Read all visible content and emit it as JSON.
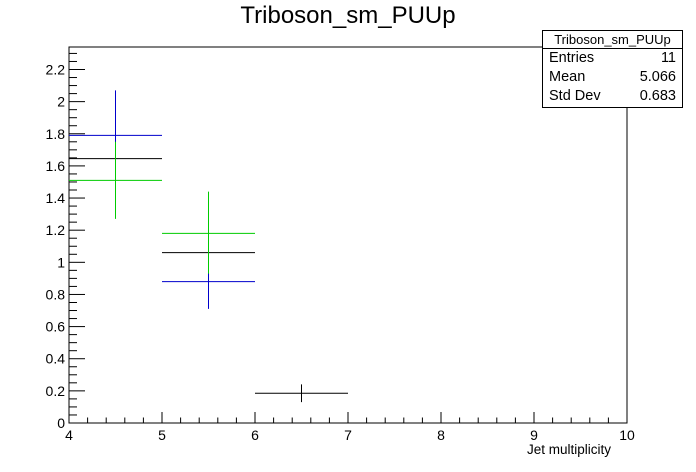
{
  "chart_data": {
    "type": "scatter",
    "title": "Triboson_sm_PUUp",
    "xlabel": "Jet multiplicity",
    "ylabel": "",
    "xlim": [
      4,
      10
    ],
    "ylim": [
      0,
      2.34
    ],
    "x_ticks": [
      "4",
      "5",
      "6",
      "7",
      "8",
      "9",
      "10"
    ],
    "y_ticks": [
      "0",
      "0.2",
      "0.4",
      "0.6",
      "0.8",
      "1",
      "1.2",
      "1.4",
      "1.6",
      "1.8",
      "2",
      "2.2"
    ],
    "grid": false,
    "series": [
      {
        "color": "#000000",
        "points": [
          {
            "x": 4.5,
            "y": 1.645,
            "xerr": 0.5,
            "ylo": 1.4,
            "yhi": 1.9
          },
          {
            "x": 5.5,
            "y": 1.06,
            "xerr": 0.5,
            "ylo": 0.83,
            "yhi": 1.29
          },
          {
            "x": 6.5,
            "y": 0.185,
            "xerr": 0.5,
            "ylo": 0.13,
            "yhi": 0.24
          },
          {
            "x": 7.5,
            "y": 0.0,
            "xerr": 0.5,
            "ylo": 0.0,
            "yhi": 0.0
          },
          {
            "x": 8.5,
            "y": 0.0,
            "xerr": 0.5,
            "ylo": 0.0,
            "yhi": 0.0
          },
          {
            "x": 9.5,
            "y": 0.0,
            "xerr": 0.5,
            "ylo": 0.0,
            "yhi": 0.0
          }
        ]
      },
      {
        "color": "#0000cc",
        "points": [
          {
            "x": 4.5,
            "y": 1.79,
            "xerr": 0.5,
            "ylo": 1.5,
            "yhi": 2.07
          },
          {
            "x": 5.5,
            "y": 0.88,
            "xerr": 0.5,
            "ylo": 0.71,
            "yhi": 1.05
          }
        ]
      },
      {
        "color": "#00cc00",
        "points": [
          {
            "x": 4.5,
            "y": 1.51,
            "xerr": 0.5,
            "ylo": 1.27,
            "yhi": 1.75
          },
          {
            "x": 5.5,
            "y": 1.18,
            "xerr": 0.5,
            "ylo": 0.93,
            "yhi": 1.44
          }
        ]
      }
    ],
    "stats": {
      "title": "Triboson_sm_PUUp",
      "rows": [
        {
          "label": "Entries",
          "value": "11"
        },
        {
          "label": "Mean",
          "value": "5.066"
        },
        {
          "label": "Std Dev",
          "value": "0.683"
        }
      ]
    }
  }
}
